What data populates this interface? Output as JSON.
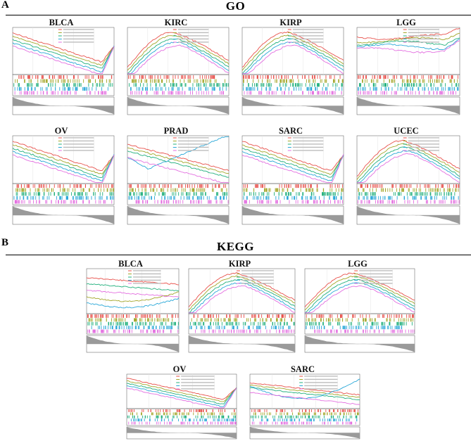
{
  "figure": {
    "section_a": {
      "letter": "A",
      "title": "GO"
    },
    "section_b": {
      "letter": "B",
      "title": "KEGG"
    }
  },
  "panels": [
    {
      "id": "go-blca",
      "title": "BLCA"
    },
    {
      "id": "go-kirc",
      "title": "KIRC"
    },
    {
      "id": "go-kirp",
      "title": "KIRP"
    },
    {
      "id": "go-lgg",
      "title": "LGG"
    },
    {
      "id": "go-ov",
      "title": "OV"
    },
    {
      "id": "go-prad",
      "title": "PRAD"
    },
    {
      "id": "go-sarc",
      "title": "SARC"
    },
    {
      "id": "go-ucec",
      "title": "UCEC"
    },
    {
      "id": "kegg-blca",
      "title": "BLCA"
    },
    {
      "id": "kegg-kirp",
      "title": "KIRP"
    },
    {
      "id": "kegg-lgg",
      "title": "LGG"
    },
    {
      "id": "kegg-ov",
      "title": "OV"
    },
    {
      "id": "kegg-sarc",
      "title": "SARC"
    }
  ],
  "colors": {
    "series": [
      "#e8504a",
      "#a3a62a",
      "#22b07d",
      "#2aa8d8",
      "#e36fe0"
    ],
    "ranked_fill": "#9a9a9a"
  }
}
